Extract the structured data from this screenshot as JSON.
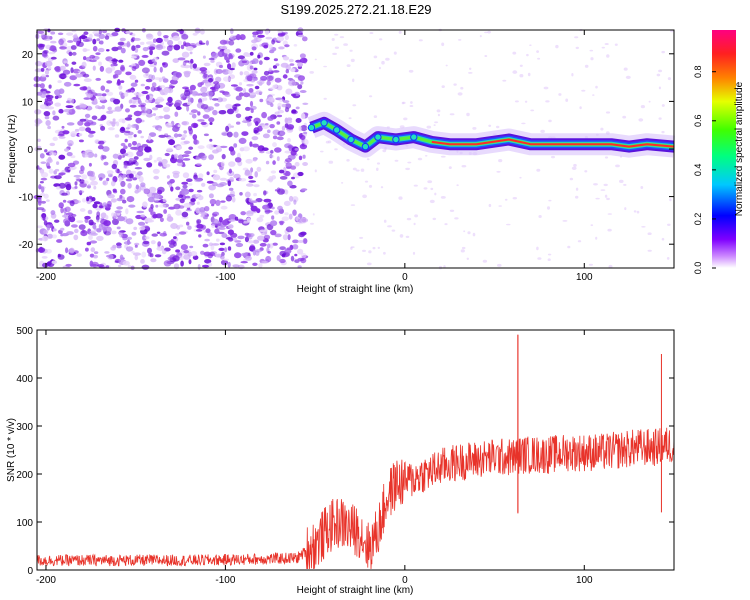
{
  "title": "S199.2025.272.21.18.E29",
  "chart_data": [
    {
      "type": "heatmap",
      "name": "spectrogram",
      "xlabel": "Height of straight line (km)",
      "ylabel": "Frequency (Hz)",
      "xlim": [
        -205,
        150
      ],
      "ylim": [
        -25,
        25
      ],
      "xticks": [
        -200,
        -100,
        0,
        100
      ],
      "yticks": [
        -20,
        -10,
        0,
        10,
        20
      ],
      "colorbar": {
        "label": "Normalized spectral amplitude",
        "range": [
          0,
          0.97
        ],
        "ticks": [
          0.0,
          0.2,
          0.4,
          0.6,
          0.8
        ],
        "colormap": "rainbow"
      },
      "features": {
        "noise_region_x": [
          -205,
          -55
        ],
        "noise_density": "high",
        "carrier_trace": [
          {
            "x": -52,
            "y": 4.5
          },
          {
            "x": -45,
            "y": 5.5
          },
          {
            "x": -38,
            "y": 4.0
          },
          {
            "x": -30,
            "y": 2.0
          },
          {
            "x": -22,
            "y": 0.5
          },
          {
            "x": -15,
            "y": 2.5
          },
          {
            "x": -5,
            "y": 2.0
          },
          {
            "x": 5,
            "y": 2.5
          },
          {
            "x": 15,
            "y": 1.5
          },
          {
            "x": 25,
            "y": 1.0
          },
          {
            "x": 40,
            "y": 1.0
          },
          {
            "x": 58,
            "y": 2.0
          },
          {
            "x": 70,
            "y": 1.0
          },
          {
            "x": 80,
            "y": 1.0
          },
          {
            "x": 100,
            "y": 1.0
          },
          {
            "x": 115,
            "y": 1.0
          },
          {
            "x": 125,
            "y": 0.5
          },
          {
            "x": 135,
            "y": 1.0
          },
          {
            "x": 150,
            "y": 0.5
          }
        ]
      }
    },
    {
      "type": "line",
      "name": "snr",
      "xlabel": "Height of straight line (km)",
      "ylabel": "SNR (10 * v/v)",
      "xlim": [
        -205,
        150
      ],
      "ylim": [
        0,
        500
      ],
      "xticks": [
        -200,
        -100,
        0,
        100
      ],
      "yticks": [
        0,
        100,
        200,
        300,
        400,
        500
      ],
      "color": "#e8332a",
      "series": [
        {
          "x": [
            -205,
            -180,
            -150,
            -120,
            -90,
            -60,
            -48,
            -42,
            -36,
            -30,
            -25,
            -20,
            -15,
            -10,
            -5,
            0,
            5,
            10,
            15,
            20,
            30,
            40,
            50,
            60,
            63,
            65,
            70,
            80,
            90,
            100,
            110,
            120,
            130,
            140,
            145,
            150
          ],
          "values": [
            20,
            20,
            20,
            20,
            22,
            25,
            60,
            90,
            100,
            85,
            80,
            45,
            80,
            150,
            180,
            185,
            190,
            200,
            205,
            215,
            225,
            230,
            235,
            235,
            490,
            240,
            240,
            240,
            245,
            245,
            245,
            250,
            255,
            255,
            260,
            260
          ]
        }
      ],
      "annotations": [
        {
          "x": 63,
          "y": 490,
          "text": ""
        },
        {
          "x": 143,
          "y": 450,
          "text": ""
        }
      ]
    }
  ]
}
